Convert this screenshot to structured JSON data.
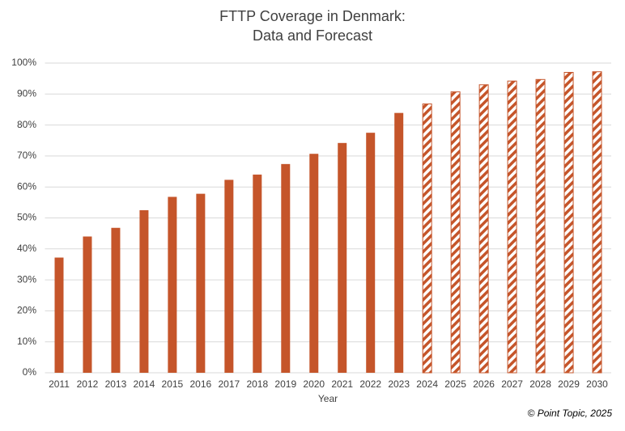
{
  "chart_data": {
    "type": "bar",
    "title": [
      "FTTP Coverage in Denmark:",
      "Data and Forecast"
    ],
    "x_label": "Year",
    "annotation": "© Point Topic, 2025",
    "categories": [
      "2011",
      "2012",
      "2013",
      "2014",
      "2015",
      "2016",
      "2017",
      "2018",
      "2019",
      "2020",
      "2021",
      "2022",
      "2023",
      "2024",
      "2025",
      "2026",
      "2027",
      "2028",
      "2029",
      "2030"
    ],
    "values": [
      37.2,
      44,
      46.8,
      52.5,
      56.8,
      57.8,
      62.3,
      64,
      67.4,
      70.7,
      74.2,
      77.5,
      83.9,
      86.8,
      90.7,
      93,
      94.2,
      94.7,
      97,
      97.2
    ],
    "pattern": [
      "solid",
      "solid",
      "solid",
      "solid",
      "solid",
      "solid",
      "solid",
      "solid",
      "solid",
      "solid",
      "solid",
      "solid",
      "solid",
      "hatched",
      "hatched",
      "hatched",
      "hatched",
      "hatched",
      "hatched",
      "hatched"
    ],
    "color": "#c5552a",
    "ylim": [
      0,
      100
    ],
    "yticks": [
      {
        "value": 0,
        "label": "0%"
      },
      {
        "value": 10,
        "label": "10%"
      },
      {
        "value": 20,
        "label": "20%"
      },
      {
        "value": 30,
        "label": "30%"
      },
      {
        "value": 40,
        "label": "40%"
      },
      {
        "value": 50,
        "label": "50%"
      },
      {
        "value": 60,
        "label": "60%"
      },
      {
        "value": 70,
        "label": "70%"
      },
      {
        "value": 80,
        "label": "80%"
      },
      {
        "value": 90,
        "label": "90%"
      },
      {
        "value": 100,
        "label": "100%"
      }
    ],
    "grid": true
  }
}
